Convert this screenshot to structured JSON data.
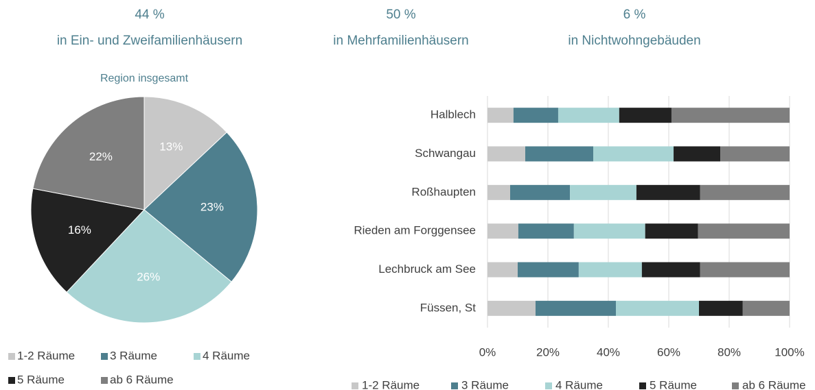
{
  "header": [
    {
      "value": "44 %",
      "label": "in Ein- und Zweifamilienhäusern"
    },
    {
      "value": "50 %",
      "label": "in Mehrfamilienhäusern"
    },
    {
      "value": "6 %",
      "label": "in Nichtwohngebäuden"
    }
  ],
  "chart_data": [
    {
      "type": "pie",
      "title": "Region insgesamt",
      "categories": [
        "1-2 Räume",
        "3 Räume",
        "4 Räume",
        "5 Räume",
        "ab 6 Räume"
      ],
      "values": [
        13,
        23,
        26,
        16,
        22
      ],
      "value_labels": [
        "13%",
        "23%",
        "26%",
        "16%",
        "22%"
      ],
      "colors": [
        "#c8c8c8",
        "#4e7f8e",
        "#a8d4d4",
        "#222222",
        "#7f7f7f"
      ]
    },
    {
      "type": "stacked_bar",
      "categories": [
        "Halblech",
        "Schwangau",
        "Roßhaupten",
        "Rieden am Forggensee",
        "Lechbruck am See",
        "Füssen, St"
      ],
      "series": [
        {
          "name": "1-2 Räume",
          "color": "#c8c8c8",
          "values": [
            8.6,
            12.5,
            7.5,
            10.2,
            10.0,
            15.9
          ]
        },
        {
          "name": "3 Räume",
          "color": "#4e7f8e",
          "values": [
            14.8,
            22.5,
            19.8,
            18.4,
            20.2,
            26.6
          ]
        },
        {
          "name": "4 Räume",
          "color": "#a8d4d4",
          "values": [
            20.2,
            26.6,
            22.0,
            23.6,
            20.9,
            27.5
          ]
        },
        {
          "name": "5 Räume",
          "color": "#222222",
          "values": [
            17.3,
            15.5,
            21.1,
            17.5,
            19.3,
            14.5
          ]
        },
        {
          "name": "ab 6 Räume",
          "color": "#7f7f7f",
          "values": [
            39.1,
            22.9,
            29.6,
            30.3,
            29.6,
            15.5
          ]
        }
      ],
      "xlim": [
        0,
        100
      ],
      "xticks": [
        {
          "value": 0,
          "label": "0%"
        },
        {
          "value": 20,
          "label": "20%"
        },
        {
          "value": 40,
          "label": "40%"
        },
        {
          "value": 60,
          "label": "60%"
        },
        {
          "value": 80,
          "label": "80%"
        },
        {
          "value": 100,
          "label": "100%"
        }
      ],
      "grid": true
    }
  ]
}
